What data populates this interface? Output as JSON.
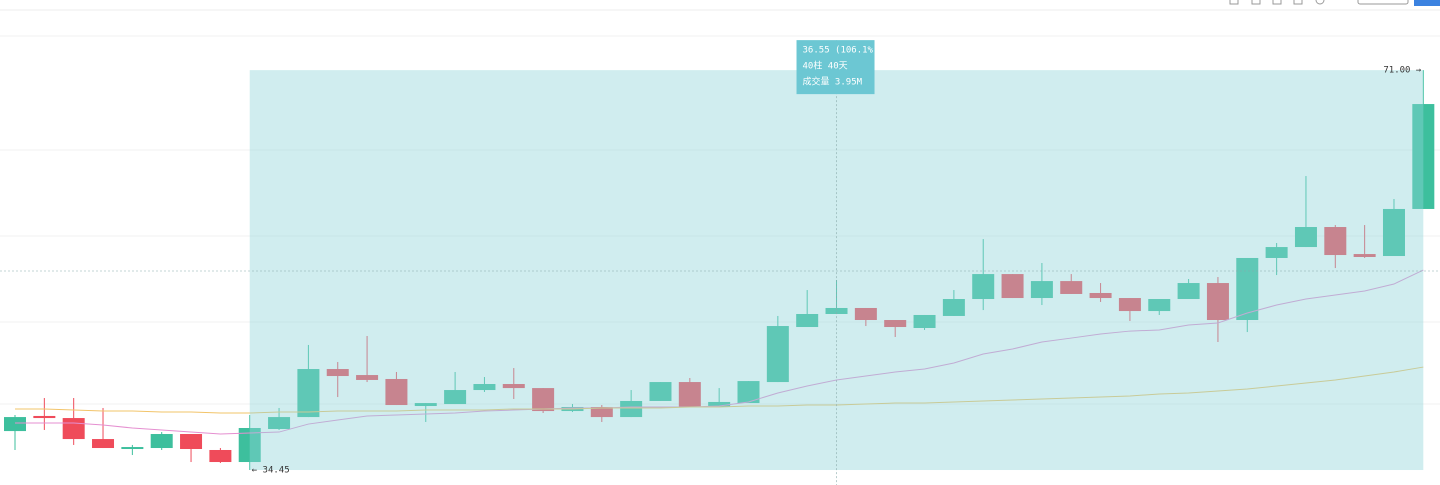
{
  "chart_data": {
    "type": "candlestick",
    "open": [
      38.01,
      39.39,
      39.2,
      37.28,
      36.37,
      36.46,
      37.74,
      36.28,
      35.18,
      38.2,
      39.29,
      43.68,
      43.13,
      42.77,
      40.3,
      40.48,
      41.76,
      42.31,
      41.94,
      39.84,
      40.21,
      39.29,
      40.76,
      42.49,
      40.21,
      40.57,
      42.49,
      47.52,
      48.71,
      49.26,
      48.16,
      47.43,
      48.53,
      50.08,
      52.36,
      50.17,
      51.72,
      50.63,
      50.17,
      48.98,
      50.08,
      51.54,
      48.16,
      53.83,
      54.83,
      56.66,
      54.19,
      54.01,
      58.31
    ],
    "high": [
      39.48,
      41.03,
      41.03,
      40.12,
      36.74,
      37.92,
      37.74,
      36.46,
      39.48,
      40.12,
      45.88,
      44.32,
      46.7,
      43.41,
      40.57,
      43.41,
      42.95,
      43.77,
      41.94,
      40.48,
      40.39,
      41.76,
      42.49,
      42.86,
      41.94,
      42.58,
      48.53,
      50.9,
      51.82,
      49.26,
      48.16,
      48.62,
      50.9,
      55.56,
      52.36,
      53.37,
      52.36,
      51.54,
      50.17,
      50.08,
      51.91,
      52.09,
      53.83,
      55.2,
      61.32,
      56.84,
      56.84,
      59.22,
      71.0
    ],
    "low": [
      36.28,
      38.11,
      36.74,
      36.46,
      35.82,
      36.28,
      35.18,
      35.09,
      34.45,
      38.11,
      39.29,
      41.12,
      42.49,
      40.39,
      38.84,
      40.48,
      41.58,
      40.94,
      39.66,
      39.75,
      38.84,
      39.29,
      40.76,
      40.21,
      40.21,
      40.57,
      42.49,
      47.52,
      48.71,
      47.61,
      46.61,
      47.25,
      48.53,
      49.07,
      50.17,
      49.53,
      50.54,
      49.81,
      48.07,
      48.62,
      50.08,
      46.15,
      47.06,
      52.27,
      54.83,
      52.91,
      53.83,
      54.01,
      58.31
    ],
    "close": [
      39.29,
      39.2,
      37.28,
      36.46,
      36.55,
      37.74,
      36.37,
      35.18,
      38.29,
      39.29,
      43.68,
      43.04,
      42.68,
      40.39,
      40.57,
      41.76,
      42.31,
      41.94,
      39.84,
      40.21,
      39.29,
      40.76,
      42.49,
      40.21,
      40.67,
      42.58,
      47.61,
      48.71,
      49.26,
      48.16,
      47.52,
      48.62,
      50.08,
      52.36,
      50.17,
      51.72,
      50.54,
      50.17,
      48.98,
      50.08,
      51.54,
      48.16,
      53.83,
      54.83,
      56.66,
      54.1,
      53.92,
      58.31,
      67.9
    ],
    "up_color": "#3dbf9d",
    "down_color": "#ef4b5a",
    "series": [
      {
        "color": "#e58fd0",
        "values": [
          38.75,
          38.75,
          38.75,
          38.56,
          38.29,
          38.11,
          37.92,
          37.74,
          37.83,
          37.92,
          38.65,
          39.02,
          39.39,
          39.48,
          39.57,
          39.66,
          39.84,
          39.93,
          40.03,
          40.12,
          40.12,
          40.21,
          40.21,
          40.21,
          40.3,
          40.67,
          41.49,
          42.13,
          42.68,
          43.04,
          43.41,
          43.68,
          44.23,
          45.05,
          45.51,
          46.15,
          46.51,
          46.88,
          47.15,
          47.25,
          47.7,
          47.89,
          48.8,
          49.53,
          50.08,
          50.45,
          50.81,
          51.45,
          52.73
        ]
      },
      {
        "color": "#f2c46a",
        "values": [
          40.03,
          40.03,
          39.93,
          39.84,
          39.84,
          39.75,
          39.75,
          39.66,
          39.66,
          39.75,
          39.75,
          39.84,
          39.84,
          39.84,
          39.93,
          39.93,
          39.93,
          40.03,
          40.03,
          40.03,
          40.12,
          40.12,
          40.12,
          40.21,
          40.21,
          40.3,
          40.3,
          40.39,
          40.39,
          40.48,
          40.57,
          40.57,
          40.67,
          40.76,
          40.85,
          40.94,
          41.03,
          41.12,
          41.21,
          41.4,
          41.49,
          41.67,
          41.85,
          42.13,
          42.4,
          42.68,
          43.04,
          43.41,
          43.86
        ]
      }
    ],
    "ylim": [
      33.08,
      77.41
    ],
    "measure": {
      "high": 71.0,
      "low": 34.45,
      "change": "36.55 (106.1%)",
      "bars": "40柱 40天",
      "volume": "成交量 3.95M",
      "high_label": "71.00 →",
      "low_label": "← 34.45",
      "color": "#8fd3d8"
    }
  }
}
